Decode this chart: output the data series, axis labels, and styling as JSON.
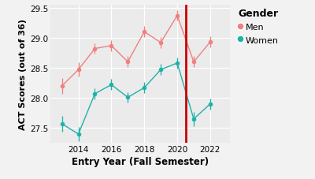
{
  "title": "",
  "xlabel": "Entry Year (Fall Semester)",
  "ylabel": "ACT Scores (out of 36)",
  "years": [
    2013,
    2014,
    2015,
    2016,
    2017,
    2018,
    2019,
    2020,
    2021,
    2022
  ],
  "men_means": [
    28.2,
    28.47,
    28.82,
    28.87,
    28.6,
    29.1,
    28.92,
    29.37,
    28.6,
    28.93
  ],
  "men_err": [
    0.13,
    0.12,
    0.09,
    0.09,
    0.09,
    0.09,
    0.09,
    0.09,
    0.09,
    0.09
  ],
  "women_means": [
    27.57,
    27.4,
    28.07,
    28.22,
    28.01,
    28.17,
    28.47,
    28.58,
    27.65,
    27.9
  ],
  "women_err": [
    0.13,
    0.12,
    0.09,
    0.09,
    0.09,
    0.09,
    0.09,
    0.09,
    0.12,
    0.09
  ],
  "men_color": "#F08080",
  "women_color": "#20B2AA",
  "vline_x": 2020.5,
  "vline_color": "#CC0000",
  "ylim": [
    27.25,
    29.55
  ],
  "xlim": [
    2012.3,
    2023.2
  ],
  "xticks": [
    2014,
    2016,
    2018,
    2020,
    2022
  ],
  "yticks": [
    27.5,
    28.0,
    28.5,
    29.0,
    29.5
  ],
  "ytick_labels": [
    "27.5",
    "28.0",
    "28.5",
    "29.0",
    "29.5"
  ],
  "plot_bg_color": "#EBEBEB",
  "fig_bg_color": "#F2F2F2",
  "grid_color": "#FFFFFF",
  "legend_title": "Gender",
  "legend_men": "Men",
  "legend_women": "Women"
}
